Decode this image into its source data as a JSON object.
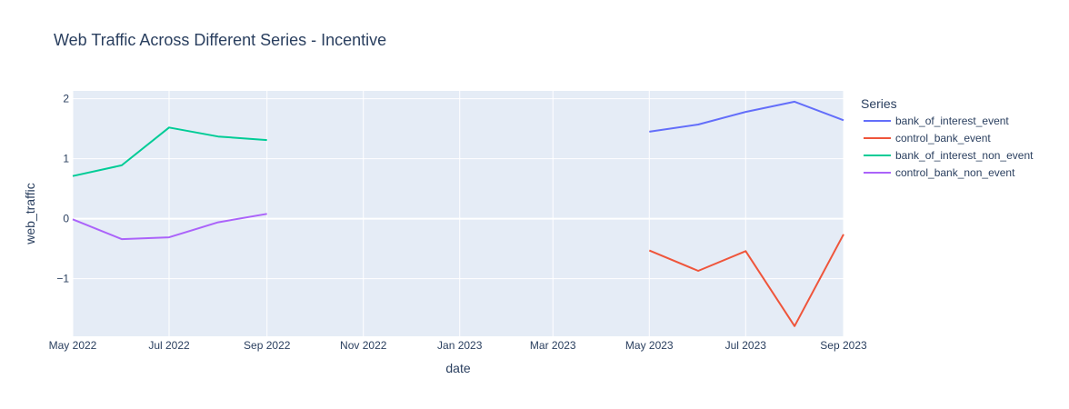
{
  "chart_data": {
    "type": "line",
    "title": "Web Traffic Across Different Series - Incentive",
    "xlabel": "date",
    "ylabel": "web_traffic",
    "xlim": [
      "2022-05-01",
      "2023-09-01"
    ],
    "ylim": [
      -1.96,
      2.13
    ],
    "grid": true,
    "legend_title": "Series",
    "legend_position": "right",
    "x_ticks": [
      {
        "date": "2022-05-01",
        "label": "May 2022"
      },
      {
        "date": "2022-07-01",
        "label": "Jul 2022"
      },
      {
        "date": "2022-09-01",
        "label": "Sep 2022"
      },
      {
        "date": "2022-11-01",
        "label": "Nov 2022"
      },
      {
        "date": "2023-01-01",
        "label": "Jan 2023"
      },
      {
        "date": "2023-03-01",
        "label": "Mar 2023"
      },
      {
        "date": "2023-05-01",
        "label": "May 2023"
      },
      {
        "date": "2023-07-01",
        "label": "Jul 2023"
      },
      {
        "date": "2023-09-01",
        "label": "Sep 2023"
      }
    ],
    "y_ticks": [
      {
        "value": 2,
        "label": "2"
      },
      {
        "value": 1,
        "label": "1"
      },
      {
        "value": 0,
        "label": "0"
      },
      {
        "value": -1,
        "label": "−1"
      }
    ],
    "series": [
      {
        "name": "bank_of_interest_event",
        "color": "#636efa",
        "points": [
          {
            "x": "2023-05-01",
            "y": 1.45
          },
          {
            "x": "2023-06-01",
            "y": 1.57
          },
          {
            "x": "2023-07-01",
            "y": 1.78
          },
          {
            "x": "2023-08-01",
            "y": 1.95
          },
          {
            "x": "2023-09-01",
            "y": 1.64
          }
        ]
      },
      {
        "name": "control_bank_event",
        "color": "#ef553b",
        "points": [
          {
            "x": "2023-05-01",
            "y": -0.53
          },
          {
            "x": "2023-06-01",
            "y": -0.87
          },
          {
            "x": "2023-07-01",
            "y": -0.54
          },
          {
            "x": "2023-08-01",
            "y": -1.79
          },
          {
            "x": "2023-09-01",
            "y": -0.26
          }
        ]
      },
      {
        "name": "bank_of_interest_non_event",
        "color": "#00cc96",
        "points": [
          {
            "x": "2022-05-01",
            "y": 0.71
          },
          {
            "x": "2022-06-01",
            "y": 0.89
          },
          {
            "x": "2022-07-01",
            "y": 1.52
          },
          {
            "x": "2022-08-01",
            "y": 1.37
          },
          {
            "x": "2022-09-01",
            "y": 1.31
          }
        ]
      },
      {
        "name": "control_bank_non_event",
        "color": "#ab63fa",
        "points": [
          {
            "x": "2022-05-01",
            "y": -0.01
          },
          {
            "x": "2022-06-01",
            "y": -0.34
          },
          {
            "x": "2022-07-01",
            "y": -0.31
          },
          {
            "x": "2022-08-01",
            "y": -0.06
          },
          {
            "x": "2022-09-01",
            "y": 0.08
          }
        ]
      }
    ]
  }
}
